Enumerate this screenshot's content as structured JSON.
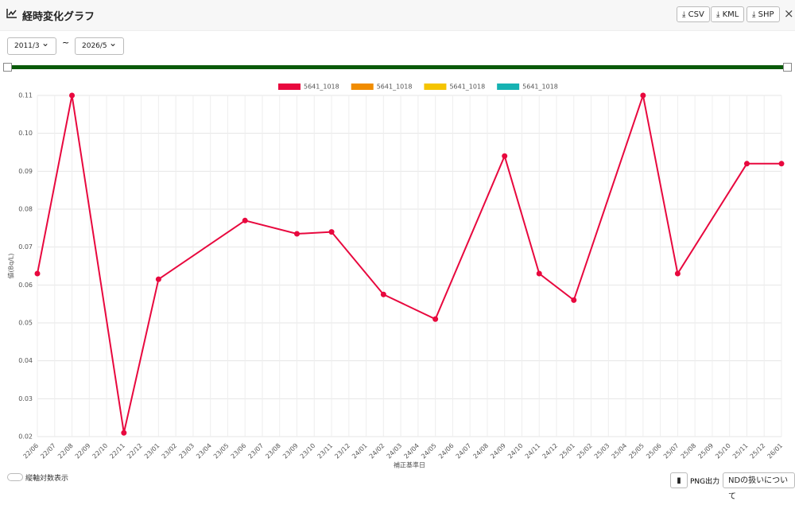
{
  "header": {
    "title": "経時変化グラフ",
    "buttons": [
      "CSV",
      "KML",
      "SHP"
    ]
  },
  "range": {
    "from": "2011/3",
    "separator": "~",
    "to": "2026/5"
  },
  "footer": {
    "toggle": "縦軸対数表示",
    "png": "PNG出力",
    "nd": "NDの扱いについて"
  },
  "chart_data": {
    "type": "line",
    "x_label": "補正基準日",
    "y_label": "値(Bq/L)",
    "categories": [
      "22/06",
      "22/07",
      "22/08",
      "22/09",
      "22/10",
      "22/11",
      "22/12",
      "23/01",
      "23/02",
      "23/03",
      "23/04",
      "23/05",
      "23/06",
      "23/07",
      "23/08",
      "23/09",
      "23/10",
      "23/11",
      "23/12",
      "24/01",
      "24/02",
      "24/03",
      "24/04",
      "24/05",
      "24/06",
      "24/07",
      "24/08",
      "24/09",
      "24/10",
      "24/11",
      "24/12",
      "25/01",
      "25/02",
      "25/03",
      "25/04",
      "25/05",
      "25/06",
      "25/07",
      "25/08",
      "25/09",
      "25/10",
      "25/11",
      "25/12",
      "26/01"
    ],
    "series": [
      {
        "name": "5641_1018",
        "color": "#e8083e",
        "x": [
          "22/06",
          "22/08",
          "22/11",
          "23/01",
          "23/06",
          "23/09",
          "23/11",
          "24/02",
          "24/05",
          "24/09",
          "24/11",
          "25/01",
          "25/05",
          "25/07",
          "25/11",
          "26/01"
        ],
        "values": [
          0.063,
          0.11,
          0.021,
          0.0615,
          0.077,
          0.0735,
          0.074,
          0.0575,
          0.051,
          0.094,
          0.063,
          0.056,
          0.11,
          0.063,
          0.092,
          0.092
        ]
      },
      {
        "name": "5641_1018",
        "color": "#f08c00",
        "x": [],
        "values": []
      },
      {
        "name": "5641_1018",
        "color": "#f5c400",
        "x": [],
        "values": []
      },
      {
        "name": "5641_1018",
        "color": "#16b2b2",
        "x": [],
        "values": []
      }
    ],
    "ylim": [
      0.02,
      0.11
    ],
    "yticks": [
      0.02,
      0.03,
      0.04,
      0.05,
      0.06,
      0.07,
      0.08,
      0.09,
      {
        "value": 0.1,
        "label": "0.10"
      },
      0.11
    ],
    "grid": true
  }
}
